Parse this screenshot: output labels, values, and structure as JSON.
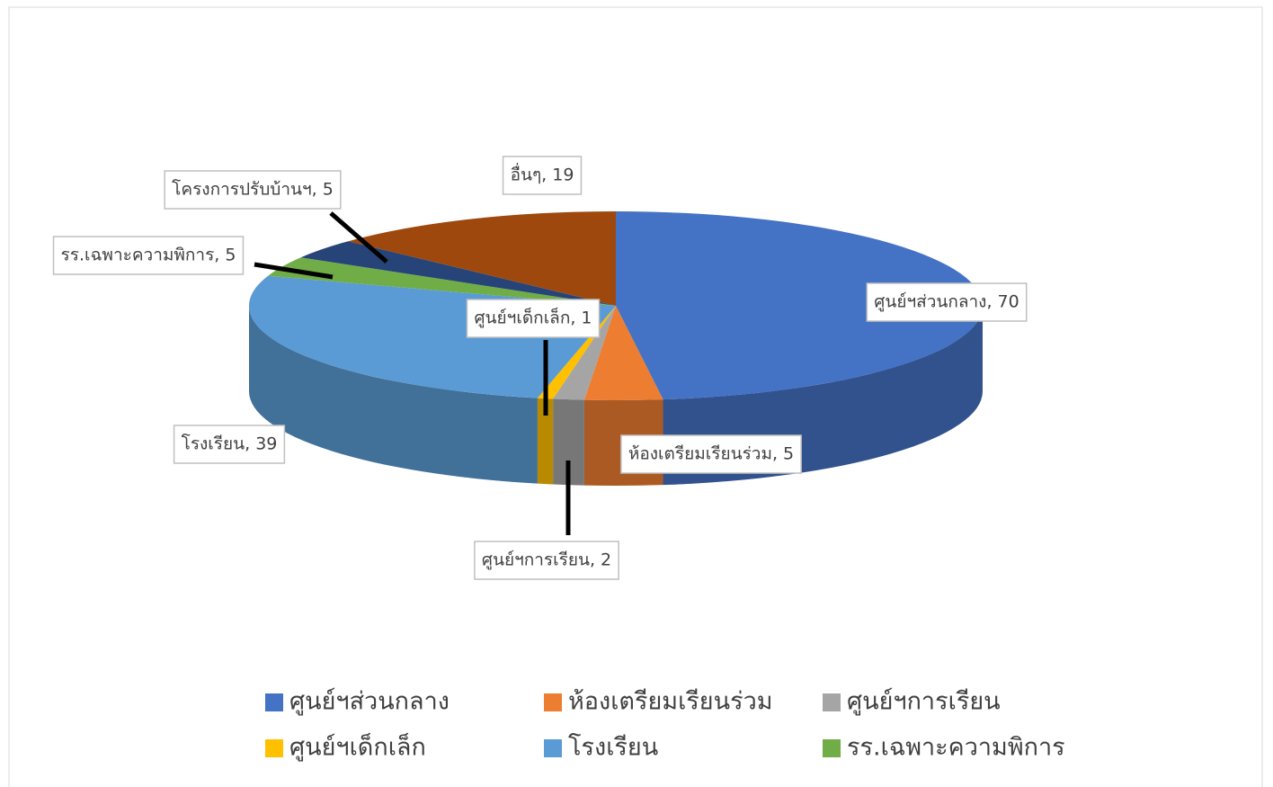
{
  "chart_data": {
    "type": "pie",
    "three_d": true,
    "categories": [
      "ศูนย์ฯส่วนกลาง",
      "ห้องเตรียมเรียนร่วม",
      "ศูนย์ฯการเรียน",
      "ศูนย์ฯเด็กเล็ก",
      "โรงเรียน",
      "รร.เฉพาะความพิการ",
      "โครงการปรับบ้านฯ",
      "อื่นๆ"
    ],
    "values": [
      70,
      5,
      2,
      1,
      39,
      5,
      5,
      19
    ],
    "value_labels": [
      "ศูนย์ฯส่วนกลาง, 70",
      "ห้องเตรียมเรียนร่วม, 5",
      "ศูนย์ฯการเรียน, 2",
      "ศูนย์ฯเด็กเล็ก, 1",
      "โรงเรียน, 39",
      "รร.เฉพาะความพิการ, 5",
      "โครงการปรับบ้านฯ, 5",
      "อื่นๆ, 19"
    ],
    "colors": [
      "#4472c4",
      "#ed7d31",
      "#a5a5a5",
      "#ffc000",
      "#5b9bd5",
      "#70ad47",
      "#264478",
      "#9e480e"
    ],
    "legend": "bottom"
  }
}
